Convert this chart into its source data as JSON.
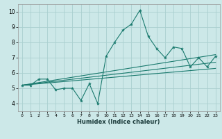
{
  "title": "",
  "xlabel": "Humidex (Indice chaleur)",
  "bg_color": "#cce8e8",
  "grid_color": "#aad0d0",
  "line_color": "#1a7a6e",
  "xlim": [
    -0.5,
    23.5
  ],
  "ylim": [
    3.5,
    10.5
  ],
  "xticks": [
    0,
    1,
    2,
    3,
    4,
    5,
    6,
    7,
    8,
    9,
    10,
    11,
    12,
    13,
    14,
    15,
    16,
    17,
    18,
    19,
    20,
    21,
    22,
    23
  ],
  "yticks": [
    4,
    5,
    6,
    7,
    8,
    9,
    10
  ],
  "series1_x": [
    0,
    1,
    2,
    3,
    4,
    5,
    6,
    7,
    8,
    9,
    10,
    11,
    12,
    13,
    14,
    15,
    16,
    17,
    18,
    19,
    20,
    21,
    22,
    23
  ],
  "series1_y": [
    5.2,
    5.2,
    5.6,
    5.6,
    4.9,
    5.0,
    5.0,
    4.2,
    5.3,
    4.0,
    7.1,
    8.0,
    8.8,
    9.2,
    10.1,
    8.4,
    7.6,
    7.0,
    7.7,
    7.6,
    6.4,
    7.0,
    6.4,
    7.1
  ],
  "series2_x": [
    0,
    23
  ],
  "series2_y": [
    5.2,
    6.3
  ],
  "series3_x": [
    0,
    23
  ],
  "series3_y": [
    5.2,
    6.7
  ],
  "series4_x": [
    0,
    23
  ],
  "series4_y": [
    5.2,
    7.2
  ]
}
